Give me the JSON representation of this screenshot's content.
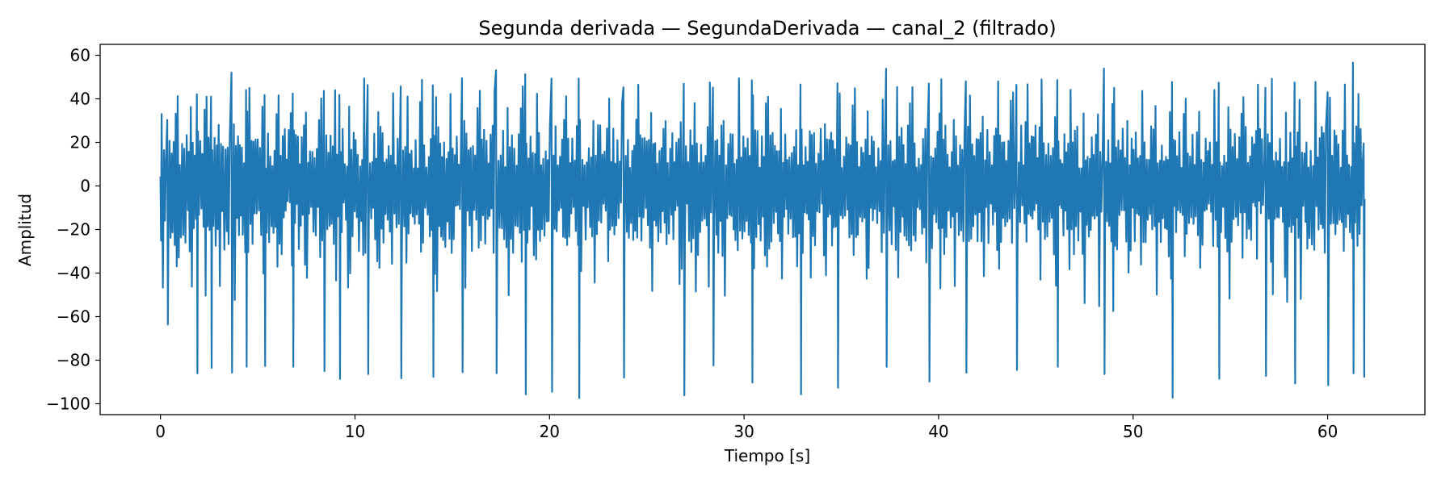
{
  "chart_data": {
    "type": "line",
    "title": "Segunda derivada — SegundaDerivada — canal_2 (filtrado)",
    "xlabel": "Tiempo [s]",
    "ylabel": "Amplitud",
    "xlim": [
      -3.1,
      65.0
    ],
    "ylim": [
      -105,
      65
    ],
    "x_ticks": [
      0,
      10,
      20,
      30,
      40,
      50,
      60
    ],
    "x_tick_labels": [
      "0",
      "10",
      "20",
      "30",
      "40",
      "50",
      "60"
    ],
    "y_ticks": [
      60,
      40,
      20,
      0,
      -20,
      -40,
      -60,
      -80,
      -100
    ],
    "y_tick_labels": [
      "60",
      "40",
      "20",
      "0",
      "−20",
      "−40",
      "−60",
      "−80",
      "−100"
    ],
    "grid": false,
    "legend": "none",
    "series": [
      {
        "color": "#1f77b4",
        "x_range": [
          0,
          61.9
        ],
        "y_range": [
          -97.4,
          56.6
        ],
        "beat_peaks": [
          {
            "t": 0.0,
            "max": 4.3,
            "min": -25.1
          },
          {
            "t": 0.35,
            "max": 30.3,
            "min": -63.6
          },
          {
            "t": 1.87,
            "max": 42.1,
            "min": -86.0
          },
          {
            "t": 2.6,
            "max": 41.0,
            "min": -83.5
          },
          {
            "t": 3.65,
            "max": 52.0,
            "min": -85.7
          },
          {
            "t": 4.4,
            "max": 44.0,
            "min": -83.0
          },
          {
            "t": 5.35,
            "max": 41.7,
            "min": -82.7
          },
          {
            "t": 6.8,
            "max": 42.4,
            "min": -83.0
          },
          {
            "t": 8.4,
            "max": 43.6,
            "min": -85.0
          },
          {
            "t": 9.2,
            "max": 41.8,
            "min": -88.6
          },
          {
            "t": 10.65,
            "max": 46.3,
            "min": -86.4
          },
          {
            "t": 12.35,
            "max": 45.7,
            "min": -88.3
          },
          {
            "t": 14.0,
            "max": 46.2,
            "min": -87.7
          },
          {
            "t": 15.5,
            "max": 49.5,
            "min": -85.5
          },
          {
            "t": 17.25,
            "max": 53.1,
            "min": -86.0
          },
          {
            "t": 18.75,
            "max": 51.3,
            "min": -95.7
          },
          {
            "t": 20.1,
            "max": 49.3,
            "min": -94.5
          },
          {
            "t": 21.5,
            "max": 49.3,
            "min": -97.4
          },
          {
            "t": 23.8,
            "max": 45.3,
            "min": -88.0
          },
          {
            "t": 26.9,
            "max": 46.9,
            "min": -96.1
          },
          {
            "t": 28.4,
            "max": 45.2,
            "min": -82.4
          },
          {
            "t": 30.4,
            "max": 48.5,
            "min": -90.3
          },
          {
            "t": 32.9,
            "max": 46.6,
            "min": -95.7
          },
          {
            "t": 34.8,
            "max": 47.1,
            "min": -92.6
          },
          {
            "t": 37.3,
            "max": 53.8,
            "min": -83.0
          },
          {
            "t": 39.5,
            "max": 47.0,
            "min": -89.8
          },
          {
            "t": 41.4,
            "max": 48.0,
            "min": -85.7
          },
          {
            "t": 44.0,
            "max": 46.4,
            "min": -84.5
          },
          {
            "t": 46.1,
            "max": 48.6,
            "min": -83.0
          },
          {
            "t": 48.5,
            "max": 53.9,
            "min": -86.4
          },
          {
            "t": 52.0,
            "max": 47.7,
            "min": -97.2
          },
          {
            "t": 54.4,
            "max": 47.4,
            "min": -88.5
          },
          {
            "t": 56.8,
            "max": 45.1,
            "min": -87.2
          },
          {
            "t": 58.3,
            "max": 47.5,
            "min": -90.7
          },
          {
            "t": 60.0,
            "max": 43.0,
            "min": -91.5
          },
          {
            "t": 61.3,
            "max": 56.6,
            "min": -86.0
          },
          {
            "t": 61.85,
            "max": 19.5,
            "min": -87.6
          }
        ]
      }
    ]
  }
}
